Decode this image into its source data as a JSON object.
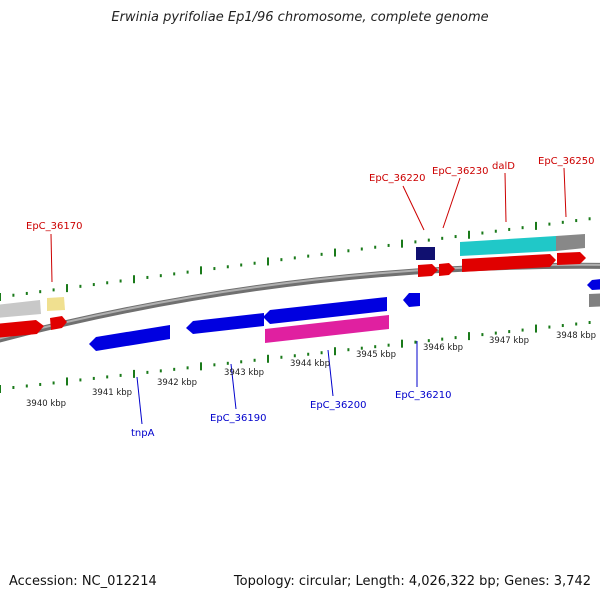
{
  "title": "Erwinia pyrifoliae Ep1/96 chromosome, complete genome",
  "footer": {
    "accession": "Accession: NC_012214",
    "topology": "Topology: circular; Length: 4,026,322 bp; Genes: 3,742"
  },
  "colors": {
    "backbone": "#808080",
    "tick": "#1a7a1a",
    "forward_label": "#cc0000",
    "reverse_label": "#0000cc"
  },
  "kbp_ticks": [
    "3940 kbp",
    "3941 kbp",
    "3942 kbp",
    "3943 kbp",
    "3944 kbp",
    "3945 kbp",
    "3946 kbp",
    "3947 kbp",
    "3948 kbp"
  ],
  "genes_forward": [
    {
      "label": "EpC_36170"
    },
    {
      "label": "EpC_36220"
    },
    {
      "label": "EpC_36230"
    },
    {
      "label": "dalD"
    },
    {
      "label": "EpC_36250"
    }
  ],
  "genes_reverse": [
    {
      "label": "tnpA"
    },
    {
      "label": "EpC_36190"
    },
    {
      "label": "EpC_36200"
    },
    {
      "label": "EpC_36210"
    }
  ]
}
